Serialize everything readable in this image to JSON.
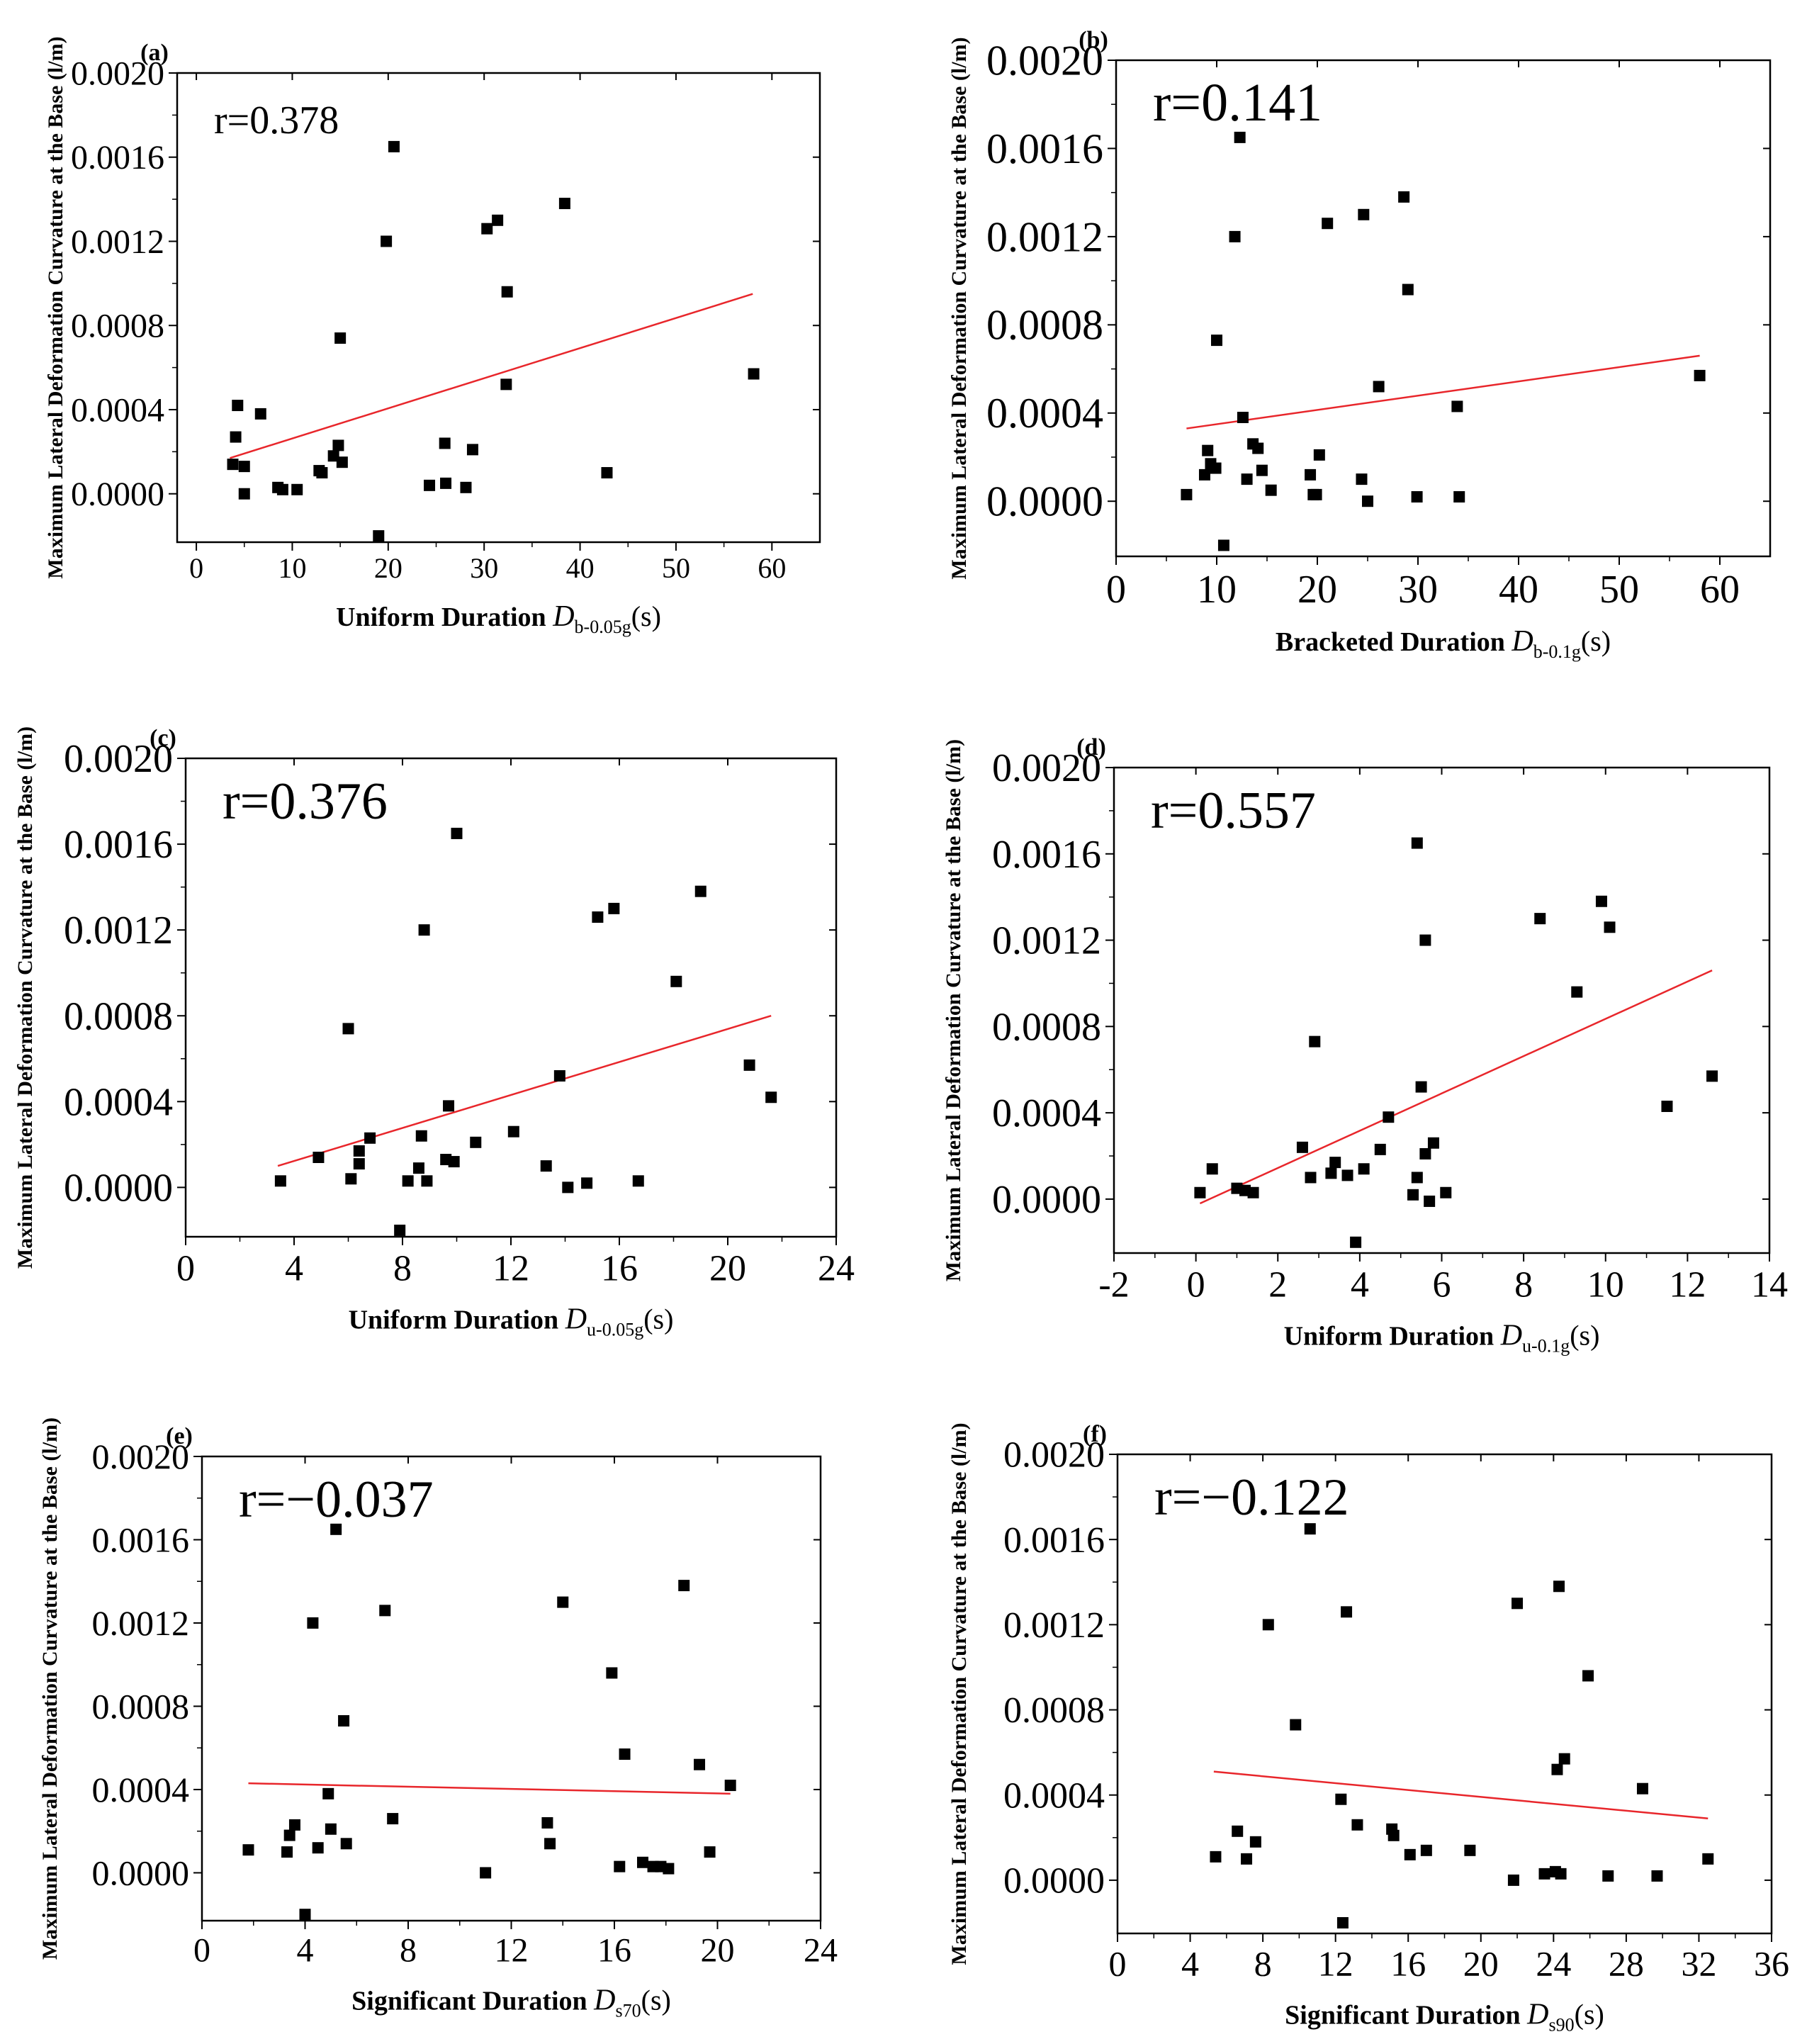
{
  "chart_data": [
    {
      "type": "scatter",
      "panel_label": "(a)",
      "title": "",
      "xlabel": "Uniform Duration",
      "xlabel_symbol": "D",
      "xlabel_subscript": "b-0.05g",
      "xlabel_suffix": "(s)",
      "ylabel": "Maximum Lateral Deformation Curvature at the Base (l/m)",
      "xlim": [
        -2,
        65
      ],
      "ylim": [
        -0.00023,
        0.002
      ],
      "xticks": [
        0,
        10,
        20,
        30,
        40,
        50,
        60
      ],
      "yticks": [
        0.0,
        0.0004,
        0.0008,
        0.0012,
        0.0016,
        0.002
      ],
      "xtick_labels": [
        "0",
        "10",
        "20",
        "30",
        "40",
        "50",
        "60"
      ],
      "ytick_labels": [
        "0.0000",
        "0.0004",
        "0.0008",
        "0.0012",
        "0.0016",
        "0.0020"
      ],
      "annotation": "r=0.378",
      "trendline": {
        "x": [
          3.5,
          58
        ],
        "y": [
          0.00017,
          0.00095
        ]
      },
      "points": [
        [
          3.8,
          0.00014
        ],
        [
          4.1,
          0.00027
        ],
        [
          4.3,
          0.00042
        ],
        [
          5.0,
          0.00013
        ],
        [
          5.0,
          0.0
        ],
        [
          6.7,
          0.00038
        ],
        [
          8.5,
          3e-05
        ],
        [
          9.0,
          2e-05
        ],
        [
          10.5,
          2e-05
        ],
        [
          12.8,
          0.00011
        ],
        [
          13.1,
          0.0001
        ],
        [
          14.3,
          0.00018
        ],
        [
          14.8,
          0.00023
        ],
        [
          15.0,
          0.00074
        ],
        [
          15.2,
          0.00015
        ],
        [
          19.0,
          -0.0002
        ],
        [
          19.8,
          0.0012
        ],
        [
          20.6,
          0.00165
        ],
        [
          24.3,
          4e-05
        ],
        [
          25.9,
          0.00024
        ],
        [
          26.0,
          5e-05
        ],
        [
          28.1,
          3e-05
        ],
        [
          28.8,
          0.00021
        ],
        [
          30.3,
          0.00126
        ],
        [
          31.4,
          0.0013
        ],
        [
          32.3,
          0.00052
        ],
        [
          32.4,
          0.00096
        ],
        [
          38.4,
          0.00138
        ],
        [
          42.8,
          0.0001
        ],
        [
          58.1,
          0.00057
        ]
      ]
    },
    {
      "type": "scatter",
      "panel_label": "(b)",
      "title": "",
      "xlabel": "Bracketed Duration",
      "xlabel_symbol": "D",
      "xlabel_subscript": "b-0.1g",
      "xlabel_suffix": "(s)",
      "ylabel": "Maximum Lateral Deformation Curvature at the Base (l/m)",
      "xlim": [
        0,
        65
      ],
      "ylim": [
        -0.00025,
        0.002
      ],
      "xticks": [
        0,
        10,
        20,
        30,
        40,
        50,
        60
      ],
      "yticks": [
        0.0,
        0.0004,
        0.0008,
        0.0012,
        0.0016,
        0.002
      ],
      "xtick_labels": [
        "0",
        "10",
        "20",
        "30",
        "40",
        "50",
        "60"
      ],
      "ytick_labels": [
        "0.0000",
        "0.0004",
        "0.0008",
        "0.0012",
        "0.0016",
        "0.0020"
      ],
      "annotation": "r=0.141",
      "trendline": {
        "x": [
          7,
          58
        ],
        "y": [
          0.00033,
          0.00066
        ]
      },
      "points": [
        [
          7.0,
          3e-05
        ],
        [
          8.8,
          0.00012
        ],
        [
          9.1,
          0.00023
        ],
        [
          9.4,
          0.00017
        ],
        [
          9.9,
          0.00015
        ],
        [
          10.0,
          0.00073
        ],
        [
          10.7,
          -0.0002
        ],
        [
          11.8,
          0.0012
        ],
        [
          12.3,
          0.00165
        ],
        [
          12.6,
          0.00038
        ],
        [
          13.0,
          0.0001
        ],
        [
          13.6,
          0.00026
        ],
        [
          14.1,
          0.00024
        ],
        [
          14.5,
          0.00014
        ],
        [
          15.4,
          5e-05
        ],
        [
          19.3,
          0.00012
        ],
        [
          19.6,
          3e-05
        ],
        [
          19.9,
          3e-05
        ],
        [
          20.2,
          0.00021
        ],
        [
          21.0,
          0.00126
        ],
        [
          24.4,
          0.0001
        ],
        [
          24.6,
          0.0013
        ],
        [
          25.0,
          -0.0
        ],
        [
          26.1,
          0.00052
        ],
        [
          28.6,
          0.00138
        ],
        [
          29.0,
          0.00096
        ],
        [
          29.9,
          2e-05
        ],
        [
          33.9,
          0.00043
        ],
        [
          34.1,
          2e-05
        ],
        [
          58.0,
          0.00057
        ]
      ]
    },
    {
      "type": "scatter",
      "panel_label": "(c)",
      "title": "",
      "xlabel": "Uniform Duration",
      "xlabel_symbol": "D",
      "xlabel_subscript": "u-0.05g",
      "xlabel_suffix": "(s)",
      "ylabel": "Maximum Lateral Deformation Curvature at the Base (l/m)",
      "xlim": [
        0,
        24
      ],
      "ylim": [
        -0.00023,
        0.002
      ],
      "xticks": [
        0,
        4,
        8,
        12,
        16,
        20,
        24
      ],
      "yticks": [
        0.0,
        0.0004,
        0.0008,
        0.0012,
        0.0016,
        0.002
      ],
      "xtick_labels": [
        "0",
        "4",
        "8",
        "12",
        "16",
        "20",
        "24"
      ],
      "ytick_labels": [
        "0.0000",
        "0.0004",
        "0.0008",
        "0.0012",
        "0.0016",
        "0.0020"
      ],
      "annotation": "r=0.376",
      "trendline": {
        "x": [
          3.4,
          21.6
        ],
        "y": [
          0.0001,
          0.0008
        ]
      },
      "points": [
        [
          3.5,
          3e-05
        ],
        [
          4.9,
          0.00014
        ],
        [
          6.0,
          0.00074
        ],
        [
          6.1,
          4e-05
        ],
        [
          6.4,
          0.00011
        ],
        [
          6.4,
          0.00017
        ],
        [
          6.8,
          0.00023
        ],
        [
          7.9,
          -0.0002
        ],
        [
          8.2,
          3e-05
        ],
        [
          8.6,
          9e-05
        ],
        [
          8.7,
          0.00024
        ],
        [
          8.8,
          0.0012
        ],
        [
          8.9,
          3e-05
        ],
        [
          9.6,
          0.00013
        ],
        [
          9.7,
          0.00038
        ],
        [
          9.9,
          0.00012
        ],
        [
          10.0,
          0.00165
        ],
        [
          10.7,
          0.00021
        ],
        [
          12.1,
          0.00026
        ],
        [
          13.3,
          0.0001
        ],
        [
          13.8,
          0.00052
        ],
        [
          14.1,
          -0.0
        ],
        [
          14.8,
          2e-05
        ],
        [
          15.2,
          0.00126
        ],
        [
          15.8,
          0.0013
        ],
        [
          16.7,
          3e-05
        ],
        [
          18.1,
          0.00096
        ],
        [
          19.0,
          0.00138
        ],
        [
          20.8,
          0.00057
        ],
        [
          21.6,
          0.00042
        ]
      ]
    },
    {
      "type": "scatter",
      "panel_label": "(d)",
      "title": "",
      "xlabel": "Uniform Duration",
      "xlabel_symbol": "D",
      "xlabel_subscript": "u-0.1g",
      "xlabel_suffix": "(s)",
      "ylabel": "Maximum Lateral Deformation Curvature at the Base (l/m)",
      "xlim": [
        -2,
        14
      ],
      "ylim": [
        -0.00025,
        0.002
      ],
      "xticks": [
        -2,
        0,
        2,
        4,
        6,
        8,
        10,
        12,
        14
      ],
      "yticks": [
        0.0,
        0.0004,
        0.0008,
        0.0012,
        0.0016,
        0.002
      ],
      "xtick_labels": [
        "-2",
        "0",
        "2",
        "4",
        "6",
        "8",
        "10",
        "12",
        "14"
      ],
      "ytick_labels": [
        "0.0000",
        "0.0004",
        "0.0008",
        "0.0012",
        "0.0016",
        "0.0020"
      ],
      "annotation": "r=0.557",
      "trendline": {
        "x": [
          0.1,
          12.6
        ],
        "y": [
          -2e-05,
          0.00106
        ]
      },
      "points": [
        [
          0.1,
          3e-05
        ],
        [
          0.4,
          0.00014
        ],
        [
          1.0,
          5e-05
        ],
        [
          1.2,
          4e-05
        ],
        [
          1.4,
          3e-05
        ],
        [
          2.6,
          0.00024
        ],
        [
          2.8,
          0.0001
        ],
        [
          2.9,
          0.00073
        ],
        [
          3.3,
          0.00012
        ],
        [
          3.4,
          0.00017
        ],
        [
          3.7,
          0.00011
        ],
        [
          3.9,
          -0.0002
        ],
        [
          4.1,
          0.00014
        ],
        [
          4.5,
          0.00023
        ],
        [
          4.7,
          0.00038
        ],
        [
          5.3,
          2e-05
        ],
        [
          5.4,
          0.0001
        ],
        [
          5.4,
          0.00165
        ],
        [
          5.5,
          0.00052
        ],
        [
          5.6,
          0.0012
        ],
        [
          5.6,
          0.00021
        ],
        [
          5.7,
          -1e-05
        ],
        [
          5.8,
          0.00026
        ],
        [
          6.1,
          3e-05
        ],
        [
          8.4,
          0.0013
        ],
        [
          9.3,
          0.00096
        ],
        [
          9.9,
          0.00138
        ],
        [
          10.1,
          0.00126
        ],
        [
          11.5,
          0.00043
        ],
        [
          12.6,
          0.00057
        ]
      ]
    },
    {
      "type": "scatter",
      "panel_label": "(e)",
      "title": "",
      "xlabel": "Significant Duration",
      "xlabel_symbol": "D",
      "xlabel_subscript": "s70",
      "xlabel_suffix": "(s)",
      "ylabel": "Maximum Lateral Deformation Curvature at the Base (l/m)",
      "xlim": [
        0,
        24
      ],
      "ylim": [
        -0.00023,
        0.002
      ],
      "xticks": [
        0,
        4,
        8,
        12,
        16,
        20,
        24
      ],
      "yticks": [
        0.0,
        0.0004,
        0.0008,
        0.0012,
        0.0016,
        0.002
      ],
      "xtick_labels": [
        "0",
        "4",
        "8",
        "12",
        "16",
        "20",
        "24"
      ],
      "ytick_labels": [
        "0.0000",
        "0.0004",
        "0.0008",
        "0.0012",
        "0.0016",
        "0.0020"
      ],
      "annotation": "r=−0.037",
      "trendline": {
        "x": [
          1.8,
          20.5
        ],
        "y": [
          0.00043,
          0.00038
        ]
      },
      "points": [
        [
          1.8,
          0.00011
        ],
        [
          3.3,
          0.0001
        ],
        [
          3.4,
          0.00018
        ],
        [
          3.6,
          0.00023
        ],
        [
          4.0,
          -0.0002
        ],
        [
          4.3,
          0.0012
        ],
        [
          4.5,
          0.00012
        ],
        [
          4.9,
          0.00038
        ],
        [
          5.0,
          0.00021
        ],
        [
          5.2,
          0.00165
        ],
        [
          5.5,
          0.00073
        ],
        [
          5.6,
          0.00014
        ],
        [
          7.1,
          0.00126
        ],
        [
          7.4,
          0.00026
        ],
        [
          11.0,
          -0.0
        ],
        [
          13.4,
          0.00024
        ],
        [
          13.5,
          0.00014
        ],
        [
          14.0,
          0.0013
        ],
        [
          15.9,
          0.00096
        ],
        [
          16.2,
          3e-05
        ],
        [
          16.4,
          0.00057
        ],
        [
          17.1,
          5e-05
        ],
        [
          17.5,
          3e-05
        ],
        [
          17.8,
          3e-05
        ],
        [
          18.1,
          2e-05
        ],
        [
          18.7,
          0.00138
        ],
        [
          19.3,
          0.00052
        ],
        [
          19.7,
          0.0001
        ],
        [
          20.5,
          0.00042
        ]
      ]
    },
    {
      "type": "scatter",
      "panel_label": "(f)",
      "title": "",
      "xlabel": "Significant Duration",
      "xlabel_symbol": "D",
      "xlabel_subscript": "s90",
      "xlabel_suffix": "(s)",
      "ylabel": "Maximum Lateral Deformation Curvature at the Base (l/m)",
      "xlim": [
        0,
        36
      ],
      "ylim": [
        -0.00025,
        0.002
      ],
      "xticks": [
        0,
        4,
        8,
        12,
        16,
        20,
        24,
        28,
        32,
        36
      ],
      "yticks": [
        0.0,
        0.0004,
        0.0008,
        0.0012,
        0.0016,
        0.002
      ],
      "xtick_labels": [
        "0",
        "4",
        "8",
        "12",
        "16",
        "20",
        "24",
        "28",
        "32",
        "36"
      ],
      "ytick_labels": [
        "0.0000",
        "0.0004",
        "0.0008",
        "0.0012",
        "0.0016",
        "0.0020"
      ],
      "annotation": "r=−0.122",
      "trendline": {
        "x": [
          5.3,
          32.5
        ],
        "y": [
          0.00051,
          0.00029
        ]
      },
      "points": [
        [
          5.4,
          0.00011
        ],
        [
          6.6,
          0.00023
        ],
        [
          7.1,
          0.0001
        ],
        [
          7.6,
          0.00018
        ],
        [
          8.3,
          0.0012
        ],
        [
          9.8,
          0.00073
        ],
        [
          10.6,
          0.00165
        ],
        [
          12.3,
          0.00038
        ],
        [
          12.4,
          -0.0002
        ],
        [
          12.6,
          0.00126
        ],
        [
          13.2,
          0.00026
        ],
        [
          15.1,
          0.00024
        ],
        [
          15.2,
          0.00021
        ],
        [
          16.1,
          0.00012
        ],
        [
          17.0,
          0.00014
        ],
        [
          19.4,
          0.00014
        ],
        [
          21.8,
          -0.0
        ],
        [
          22.0,
          0.0013
        ],
        [
          23.5,
          3e-05
        ],
        [
          24.1,
          4e-05
        ],
        [
          24.2,
          0.00052
        ],
        [
          24.3,
          0.00138
        ],
        [
          24.4,
          3e-05
        ],
        [
          24.6,
          0.00057
        ],
        [
          25.9,
          0.00096
        ],
        [
          27.0,
          2e-05
        ],
        [
          28.9,
          0.00043
        ],
        [
          29.7,
          2e-05
        ],
        [
          32.5,
          0.0001
        ]
      ]
    }
  ]
}
